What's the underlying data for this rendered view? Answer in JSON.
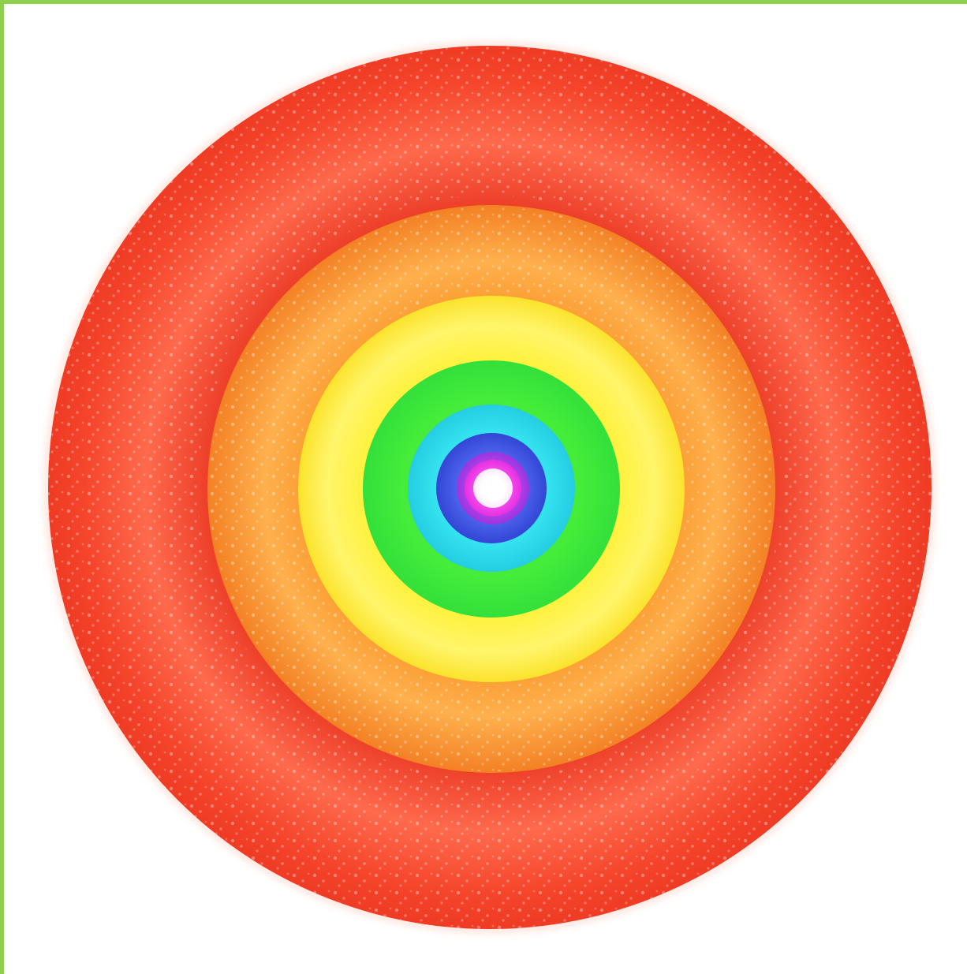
{
  "image": {
    "subject": "concentric-rainbow-rings",
    "colors": {
      "frame": "#8fd14f",
      "background": "#ffffff",
      "red": "#f0402a",
      "red_highlight": "#ff7a5e",
      "orange": "#f58a2a",
      "orange_highlight": "#ffb05a",
      "yellow": "#ffe62a",
      "yellow_highlight": "#fff59a",
      "green": "#3ee83a",
      "cyan": "#2fd8e8",
      "blue": "#3a55e0",
      "violet": "#b43ce8",
      "magenta": "#f03cf0",
      "center": "#ffffff"
    },
    "rings": [
      "red",
      "orange",
      "yellow",
      "green",
      "cyan",
      "blue",
      "violet",
      "magenta",
      "center"
    ]
  }
}
